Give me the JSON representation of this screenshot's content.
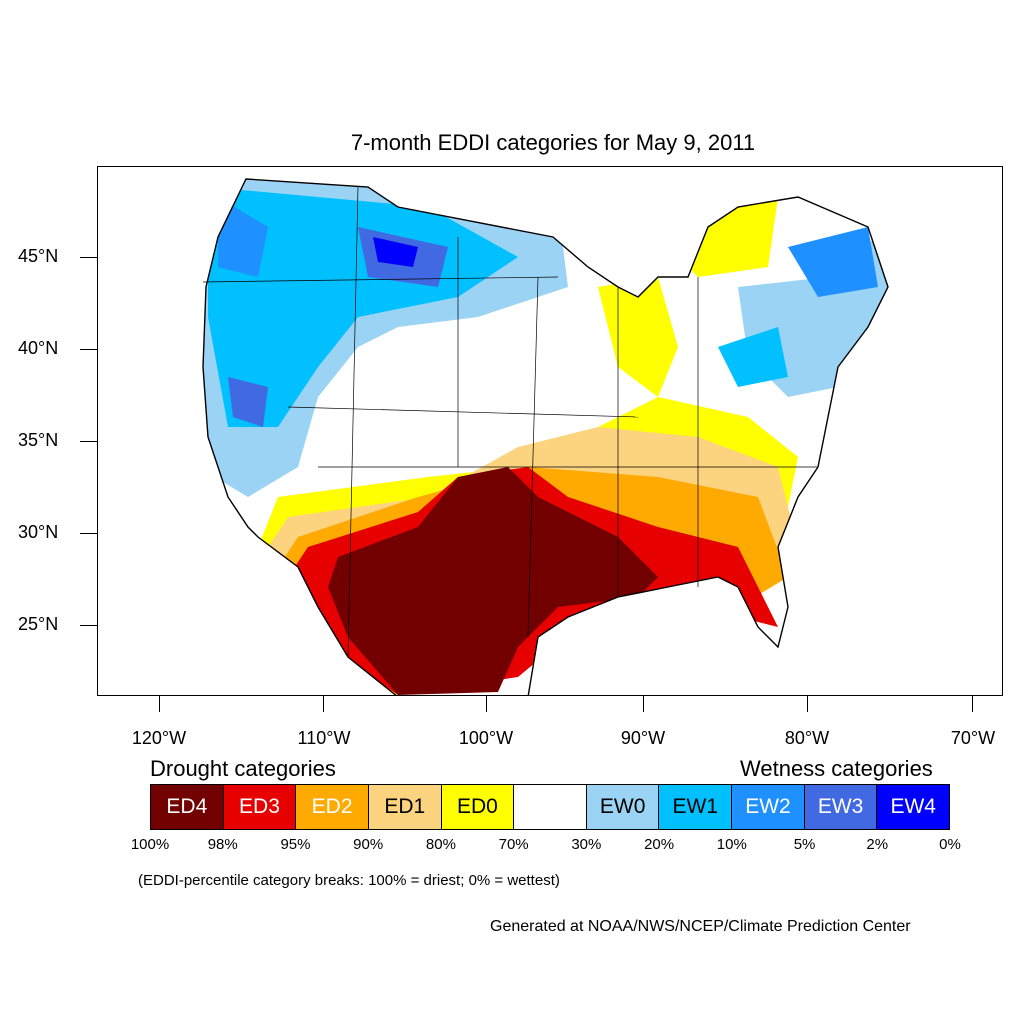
{
  "title": "7-month EDDI categories for May 9, 2011",
  "latitude_labels": [
    "45°N",
    "40°N",
    "35°N",
    "30°N",
    "25°N"
  ],
  "longitude_labels": [
    "120°W",
    "110°W",
    "100°W",
    "90°W",
    "80°W",
    "70°W"
  ],
  "legend": {
    "drought_heading": "Drought categories",
    "wetness_heading": "Wetness categories",
    "categories": [
      {
        "label": "ED4",
        "color": "#730000",
        "text_color": "#ffffff"
      },
      {
        "label": "ED3",
        "color": "#e60000",
        "text_color": "#ffffff"
      },
      {
        "label": "ED2",
        "color": "#ffaa00",
        "text_color": "#ffffff"
      },
      {
        "label": "ED1",
        "color": "#fcd37f",
        "text_color": "#000000"
      },
      {
        "label": "ED0",
        "color": "#ffff00",
        "text_color": "#000000"
      },
      {
        "label": "",
        "color": "#ffffff",
        "text_color": "#000000"
      },
      {
        "label": "EW0",
        "color": "#9bd3f5",
        "text_color": "#000000"
      },
      {
        "label": "EW1",
        "color": "#00c0ff",
        "text_color": "#000000"
      },
      {
        "label": "EW2",
        "color": "#1e90ff",
        "text_color": "#ffffff"
      },
      {
        "label": "EW3",
        "color": "#4169e1",
        "text_color": "#ffffff"
      },
      {
        "label": "EW4",
        "color": "#0000ff",
        "text_color": "#ffffff"
      }
    ],
    "percentile_breaks": [
      "100%",
      "98%",
      "95%",
      "90%",
      "80%",
      "70%",
      "30%",
      "20%",
      "10%",
      "5%",
      "2%",
      "0%"
    ]
  },
  "note": "(EDDI-percentile category breaks: 100% = driest; 0% = wettest)",
  "credit": "Generated at NOAA/NWS/NCEP/Climate Prediction Center"
}
